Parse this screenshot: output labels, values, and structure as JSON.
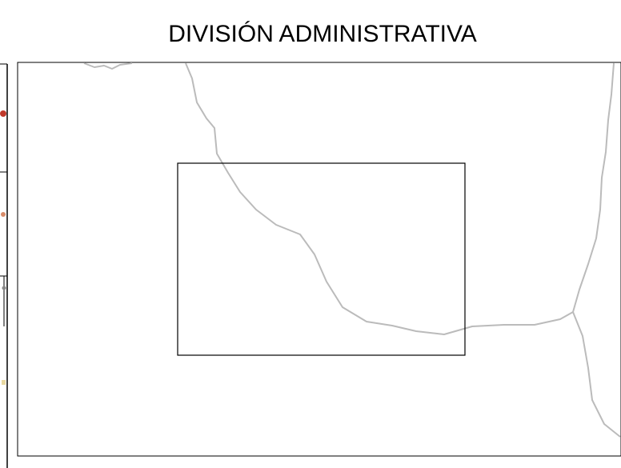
{
  "title": "DIVISIÓN ADMINISTRATIVA"
}
